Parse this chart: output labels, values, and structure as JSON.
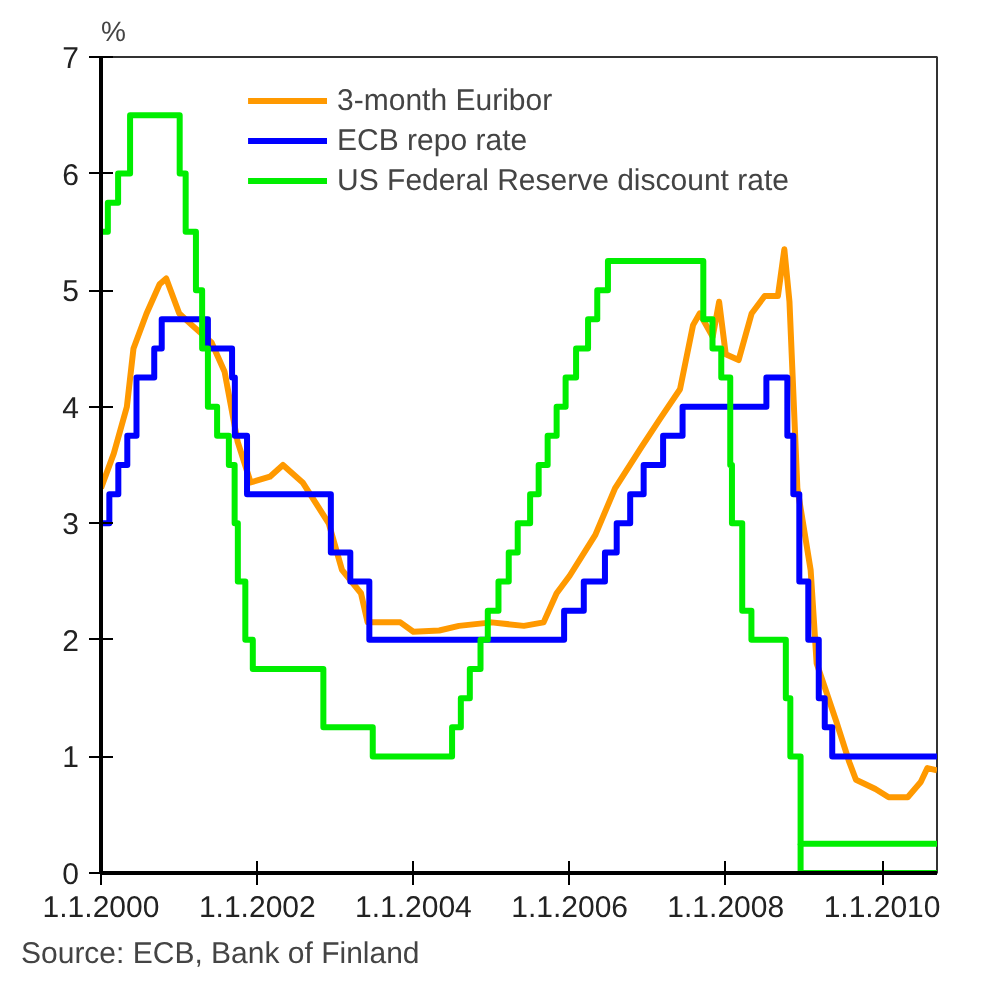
{
  "chart_data": {
    "type": "line",
    "ylabel": "%",
    "annotations": [
      "Source: ECB, Bank of Finland"
    ],
    "xlim": [
      "2000-01-01",
      "2010-09-15"
    ],
    "xticks": [
      {
        "value": "2000-01-01",
        "label": "1.1.2000"
      },
      {
        "value": "2002-01-01",
        "label": "1.1.2002"
      },
      {
        "value": "2004-01-01",
        "label": "1.1.2004"
      },
      {
        "value": "2006-01-01",
        "label": "1.1.2006"
      },
      {
        "value": "2008-01-01",
        "label": "1.1.2008"
      },
      {
        "value": "2010-01-01",
        "label": "1.1.2010"
      }
    ],
    "ylim": [
      0,
      7
    ],
    "yticks": [
      0,
      1,
      2,
      3,
      4,
      5,
      6,
      7
    ],
    "grid": false,
    "legend": "top",
    "series": [
      {
        "name": "3-month Euribor",
        "color": "#ff9900",
        "x": [
          "2000-01-01",
          "2000-03-01",
          "2000-05-01",
          "2000-06-01",
          "2000-08-01",
          "2000-10-01",
          "2000-11-01",
          "2001-01-01",
          "2001-03-01",
          "2001-06-01",
          "2001-08-01",
          "2001-10-01",
          "2001-12-01",
          "2002-03-01",
          "2002-05-01",
          "2002-08-01",
          "2002-12-01",
          "2003-02-01",
          "2003-05-01",
          "2003-06-01",
          "2003-11-01",
          "2004-01-01",
          "2004-05-01",
          "2004-08-01",
          "2005-01-01",
          "2005-06-01",
          "2005-09-01",
          "2005-11-01",
          "2006-01-01",
          "2006-05-01",
          "2006-08-01",
          "2006-12-01",
          "2007-03-01",
          "2007-06-01",
          "2007-08-01",
          "2007-09-01",
          "2007-11-01",
          "2007-12-01",
          "2008-01-01",
          "2008-03-01",
          "2008-05-01",
          "2008-07-01",
          "2008-09-01",
          "2008-10-01",
          "2008-10-25",
          "2008-12-01",
          "2009-02-01",
          "2009-03-01",
          "2009-06-01",
          "2009-08-01",
          "2009-09-01",
          "2009-12-01",
          "2010-02-01",
          "2010-05-01",
          "2010-07-01",
          "2010-08-01",
          "2010-09-15"
        ],
        "values": [
          3.3,
          3.6,
          4.0,
          4.5,
          4.8,
          5.05,
          5.1,
          4.8,
          4.7,
          4.55,
          4.3,
          3.7,
          3.35,
          3.4,
          3.5,
          3.35,
          3.0,
          2.6,
          2.4,
          2.15,
          2.15,
          2.07,
          2.08,
          2.12,
          2.15,
          2.12,
          2.15,
          2.4,
          2.55,
          2.9,
          3.3,
          3.65,
          3.9,
          4.15,
          4.7,
          4.8,
          4.6,
          4.9,
          4.45,
          4.4,
          4.8,
          4.95,
          4.95,
          5.35,
          4.9,
          3.3,
          2.6,
          1.8,
          1.3,
          0.95,
          0.8,
          0.72,
          0.65,
          0.65,
          0.78,
          0.9,
          0.88
        ]
      },
      {
        "name": "ECB repo rate",
        "color": "#0000ff",
        "type": "step",
        "x": [
          "2000-01-01",
          "2000-02-09",
          "2000-03-22",
          "2000-05-03",
          "2000-06-15",
          "2000-09-06",
          "2000-10-11",
          "2001-05-15",
          "2001-09-05",
          "2001-09-18",
          "2001-11-14",
          "2002-12-11",
          "2003-03-12",
          "2003-06-09",
          "2005-12-06",
          "2006-03-08",
          "2006-06-15",
          "2006-08-09",
          "2006-10-11",
          "2006-12-13",
          "2007-03-14",
          "2007-06-13",
          "2008-07-09",
          "2008-10-15",
          "2008-11-12",
          "2008-12-10",
          "2009-01-21",
          "2009-03-11",
          "2009-04-08",
          "2009-05-13",
          "2010-09-15"
        ],
        "values": [
          3.0,
          3.25,
          3.5,
          3.75,
          4.25,
          4.5,
          4.75,
          4.5,
          4.25,
          3.75,
          3.25,
          2.75,
          2.5,
          2.0,
          2.25,
          2.5,
          2.75,
          3.0,
          3.25,
          3.5,
          3.75,
          4.0,
          4.25,
          3.75,
          3.25,
          2.5,
          2.0,
          1.5,
          1.25,
          1.0,
          1.0
        ]
      },
      {
        "name": "US Federal Reserve discount rate",
        "color": "#00ee00",
        "type": "step",
        "x": [
          "2000-01-01",
          "2000-02-02",
          "2000-03-21",
          "2000-05-16",
          "2001-01-03",
          "2001-01-31",
          "2001-03-20",
          "2001-04-18",
          "2001-05-15",
          "2001-06-27",
          "2001-08-21",
          "2001-09-17",
          "2001-10-02",
          "2001-11-06",
          "2001-12-11",
          "2002-11-06",
          "2003-06-25",
          "2004-06-30",
          "2004-08-10",
          "2004-09-21",
          "2004-11-10",
          "2004-12-14",
          "2005-02-02",
          "2005-03-22",
          "2005-05-03",
          "2005-06-30",
          "2005-08-09",
          "2005-09-20",
          "2005-11-01",
          "2005-12-13",
          "2006-01-31",
          "2006-03-28",
          "2006-05-10",
          "2006-06-29",
          "2007-09-18",
          "2007-10-31",
          "2007-12-11",
          "2008-01-22",
          "2008-01-30",
          "2008-03-18",
          "2008-04-30",
          "2008-10-08",
          "2008-10-29",
          "2008-12-16",
          "2010-09-15"
        ],
        "values": [
          5.5,
          5.75,
          6.0,
          6.5,
          6.0,
          5.5,
          5.0,
          4.5,
          4.0,
          3.75,
          3.5,
          3.0,
          2.5,
          2.0,
          1.75,
          1.25,
          1.0,
          1.25,
          1.5,
          1.75,
          2.0,
          2.25,
          2.5,
          2.75,
          3.0,
          3.25,
          3.5,
          3.75,
          4.0,
          4.25,
          4.5,
          4.75,
          5.0,
          5.25,
          4.75,
          4.5,
          4.25,
          3.5,
          3.0,
          2.25,
          2.0,
          1.5,
          1.0,
          0.25,
          0.25
        ]
      },
      {
        "color": "#00ee00",
        "x": [
          "2008-12-16",
          "2008-12-16",
          "2010-09-15"
        ],
        "values": [
          0.25,
          0,
          0
        ]
      }
    ]
  }
}
